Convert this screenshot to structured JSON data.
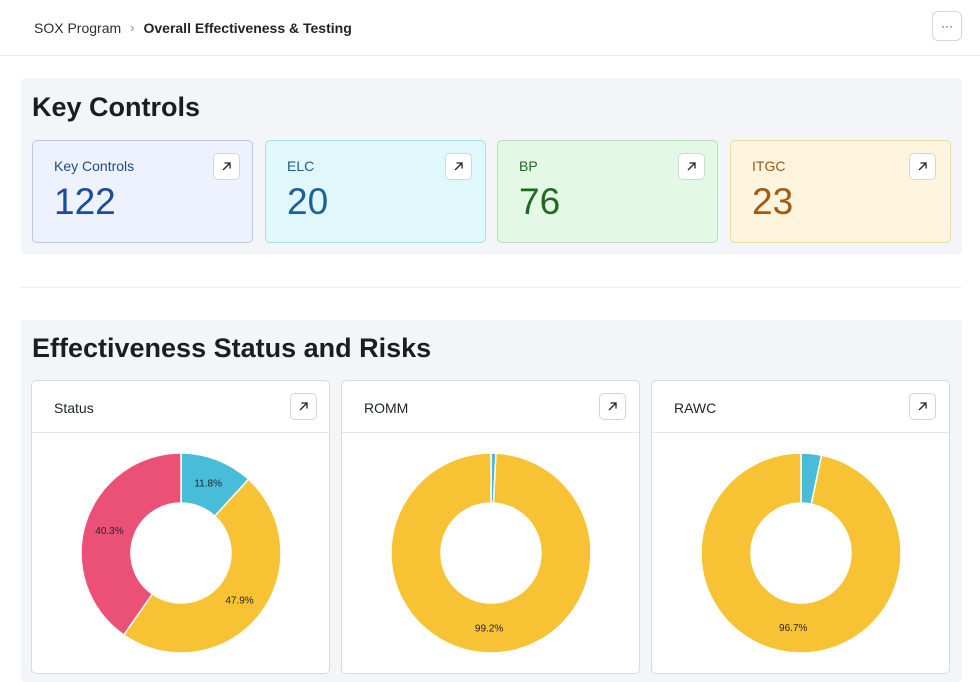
{
  "breadcrumb": {
    "root": "SOX Program",
    "separator": "›",
    "current": "Overall Effectiveness & Testing"
  },
  "more_label": "···",
  "key_controls": {
    "title": "Key Controls",
    "cards": [
      {
        "label": "Key Controls",
        "value": "122",
        "bg": "#edf2fe",
        "border": "#bcc8df",
        "label_color": "#1e4b8c",
        "value_color": "#1a4c9e"
      },
      {
        "label": "ELC",
        "value": "20",
        "bg": "#e0f8fb",
        "border": "#b0dbe2",
        "label_color": "#1a5f86",
        "value_color": "#19629a"
      },
      {
        "label": "BP",
        "value": "76",
        "bg": "#e4f8e6",
        "border": "#b8deba",
        "label_color": "#1f6a1f",
        "value_color": "#1e6a1e"
      },
      {
        "label": "ITGC",
        "value": "23",
        "bg": "#fff5de",
        "border": "#ecd9a6",
        "label_color": "#9a5a10",
        "value_color": "#a45a12"
      }
    ]
  },
  "effectiveness": {
    "title": "Effectiveness Status and Risks",
    "charts": [
      {
        "title": "Status",
        "slices": [
          {
            "value": 11.8,
            "color": "#48bcd8",
            "label": "11.8%"
          },
          {
            "value": 47.9,
            "color": "#f7c234",
            "label": "47.9%"
          },
          {
            "value": 40.3,
            "color": "#eb5177",
            "label": "40.3%"
          }
        ]
      },
      {
        "title": "ROMM",
        "slices": [
          {
            "value": 0.8,
            "color": "#48bcd8",
            "label": ""
          },
          {
            "value": 99.2,
            "color": "#f7c234",
            "label": "99.2%"
          }
        ]
      },
      {
        "title": "RAWC",
        "slices": [
          {
            "value": 3.3,
            "color": "#48bcd8",
            "label": ""
          },
          {
            "value": 96.7,
            "color": "#f7c234",
            "label": "96.7%"
          }
        ]
      }
    ]
  },
  "chart_data": [
    {
      "type": "pie",
      "title": "Status",
      "categories": [
        "",
        "",
        ""
      ],
      "values": [
        11.8,
        47.9,
        40.3
      ]
    },
    {
      "type": "pie",
      "title": "ROMM",
      "categories": [
        "",
        ""
      ],
      "values": [
        0.8,
        99.2
      ]
    },
    {
      "type": "pie",
      "title": "RAWC",
      "categories": [
        "",
        ""
      ],
      "values": [
        3.3,
        96.7
      ]
    }
  ]
}
